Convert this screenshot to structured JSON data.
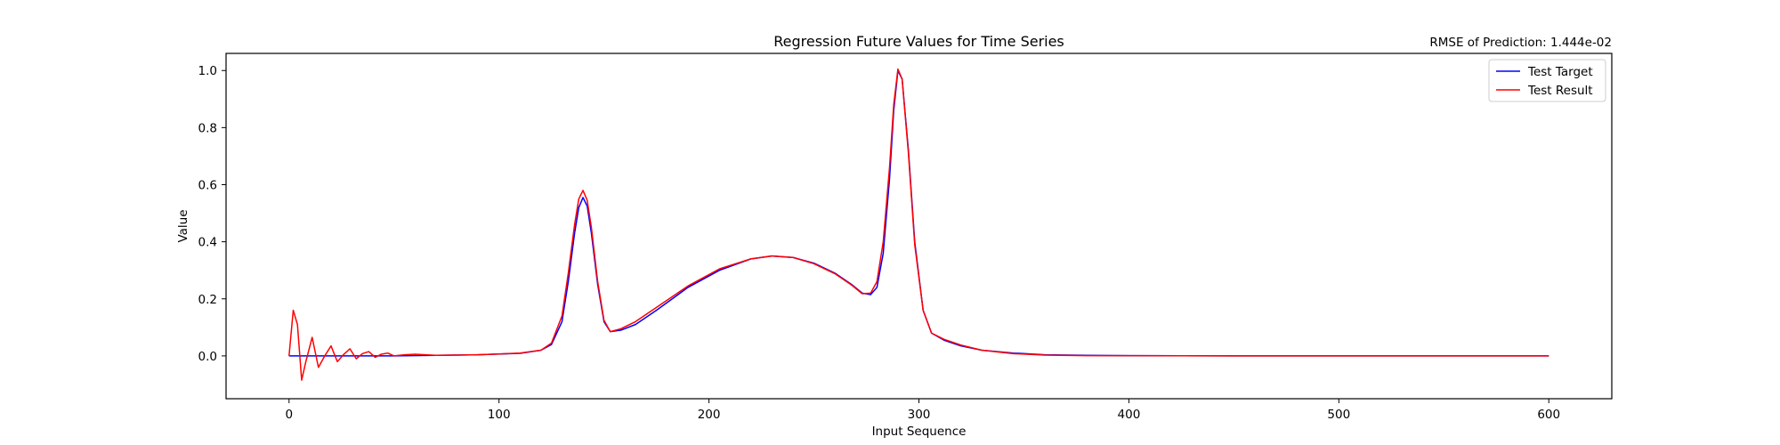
{
  "chart_data": {
    "type": "line",
    "title": "Regression Future Values for Time Series",
    "annotation": "RMSE of Prediction: 1.444e-02",
    "xlabel": "Input Sequence",
    "ylabel": "Value",
    "xlim": [
      -30,
      630
    ],
    "ylim": [
      -0.15,
      1.06
    ],
    "xticks": [
      0,
      100,
      200,
      300,
      400,
      500,
      600
    ],
    "xtick_labels": [
      "0",
      "100",
      "200",
      "300",
      "400",
      "500",
      "600"
    ],
    "yticks": [
      0.0,
      0.2,
      0.4,
      0.6,
      0.8,
      1.0
    ],
    "ytick_labels": [
      "0.0",
      "0.2",
      "0.4",
      "0.6",
      "0.8",
      "1.0"
    ],
    "grid": false,
    "legend_position": "top-right",
    "series": [
      {
        "name": "Test Target",
        "color": "#0000ff",
        "x": [
          0,
          50,
          90,
          110,
          120,
          125,
          130,
          133,
          136,
          138,
          140,
          142,
          144,
          147,
          150,
          153,
          158,
          165,
          175,
          190,
          205,
          220,
          230,
          240,
          250,
          260,
          268,
          273,
          277,
          280,
          283,
          286,
          288,
          290,
          292,
          295,
          298,
          302,
          306,
          312,
          320,
          330,
          345,
          360,
          380,
          400,
          450,
          500,
          550,
          600
        ],
        "y": [
          0.0,
          0.0,
          0.004,
          0.009,
          0.02,
          0.04,
          0.12,
          0.26,
          0.43,
          0.52,
          0.555,
          0.525,
          0.43,
          0.25,
          0.12,
          0.085,
          0.09,
          0.11,
          0.16,
          0.24,
          0.3,
          0.34,
          0.35,
          0.345,
          0.325,
          0.29,
          0.25,
          0.22,
          0.215,
          0.24,
          0.36,
          0.62,
          0.86,
          1.0,
          0.97,
          0.72,
          0.4,
          0.16,
          0.08,
          0.055,
          0.035,
          0.02,
          0.01,
          0.004,
          0.002,
          0.001,
          0.0,
          0.0,
          0.0,
          0.0
        ]
      },
      {
        "name": "Test Result",
        "color": "#ff0000",
        "x": [
          0,
          2,
          4,
          6,
          8,
          11,
          14,
          17,
          20,
          23,
          26,
          29,
          32,
          35,
          38,
          41,
          44,
          47,
          50,
          55,
          60,
          70,
          80,
          90,
          110,
          120,
          125,
          130,
          133,
          136,
          138,
          140,
          142,
          144,
          147,
          150,
          153,
          158,
          165,
          175,
          190,
          205,
          220,
          230,
          240,
          250,
          260,
          268,
          273,
          277,
          280,
          283,
          286,
          288,
          290,
          292,
          295,
          298,
          302,
          306,
          312,
          320,
          330,
          345,
          360,
          380,
          400,
          450,
          500,
          550,
          600
        ],
        "y": [
          0.0,
          0.16,
          0.11,
          -0.085,
          -0.02,
          0.065,
          -0.04,
          0.0,
          0.035,
          -0.02,
          0.005,
          0.025,
          -0.01,
          0.008,
          0.015,
          -0.005,
          0.006,
          0.01,
          0.0,
          0.004,
          0.006,
          0.002,
          0.003,
          0.004,
          0.01,
          0.02,
          0.045,
          0.14,
          0.29,
          0.46,
          0.55,
          0.58,
          0.545,
          0.45,
          0.26,
          0.125,
          0.085,
          0.095,
          0.12,
          0.17,
          0.245,
          0.305,
          0.34,
          0.35,
          0.345,
          0.323,
          0.288,
          0.248,
          0.218,
          0.22,
          0.26,
          0.4,
          0.66,
          0.88,
          1.005,
          0.97,
          0.71,
          0.39,
          0.16,
          0.08,
          0.058,
          0.038,
          0.02,
          0.008,
          0.003,
          0.001,
          0.001,
          0.0,
          0.0,
          0.0,
          0.0
        ]
      }
    ]
  }
}
